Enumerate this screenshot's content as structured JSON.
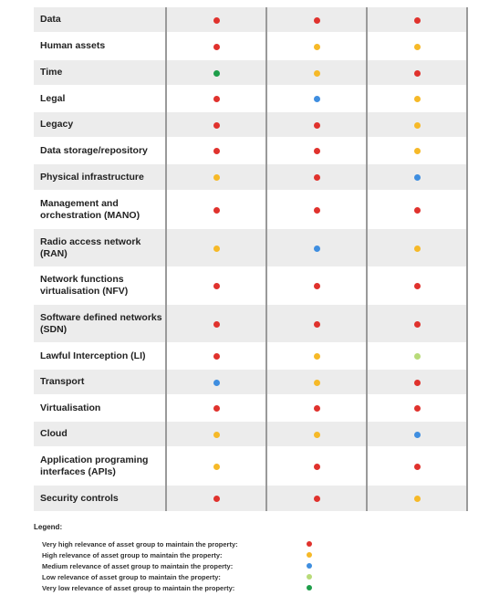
{
  "colors": {
    "very_high": "#e0322d",
    "high": "#f6b928",
    "medium": "#3f8ee0",
    "low": "#b8db79",
    "very_low": "#1e9e4a"
  },
  "rows": [
    {
      "label": "Data",
      "levels": [
        "very_high",
        "very_high",
        "very_high"
      ]
    },
    {
      "label": "Human assets",
      "levels": [
        "very_high",
        "high",
        "high"
      ]
    },
    {
      "label": "Time",
      "levels": [
        "very_low",
        "high",
        "very_high"
      ]
    },
    {
      "label": "Legal",
      "levels": [
        "very_high",
        "medium",
        "high"
      ]
    },
    {
      "label": "Legacy",
      "levels": [
        "very_high",
        "very_high",
        "high"
      ]
    },
    {
      "label": "Data storage/repository",
      "levels": [
        "very_high",
        "very_high",
        "high"
      ]
    },
    {
      "label": "Physical infrastructure",
      "levels": [
        "high",
        "very_high",
        "medium"
      ]
    },
    {
      "label": "Management and orchestration (MANO)",
      "levels": [
        "very_high",
        "very_high",
        "very_high"
      ]
    },
    {
      "label": "Radio access network (RAN)",
      "levels": [
        "high",
        "medium",
        "high"
      ]
    },
    {
      "label": "Network functions virtualisation (NFV)",
      "levels": [
        "very_high",
        "very_high",
        "very_high"
      ]
    },
    {
      "label": "Software defined networks (SDN)",
      "levels": [
        "very_high",
        "very_high",
        "very_high"
      ]
    },
    {
      "label": "Lawful Interception (LI)",
      "levels": [
        "very_high",
        "high",
        "low"
      ]
    },
    {
      "label": "Transport",
      "levels": [
        "medium",
        "high",
        "very_high"
      ]
    },
    {
      "label": "Virtualisation",
      "levels": [
        "very_high",
        "very_high",
        "very_high"
      ]
    },
    {
      "label": "Cloud",
      "levels": [
        "high",
        "high",
        "medium"
      ]
    },
    {
      "label": "Application programing interfaces (APIs)",
      "levels": [
        "high",
        "very_high",
        "very_high"
      ]
    },
    {
      "label": "Security controls",
      "levels": [
        "very_high",
        "very_high",
        "high"
      ]
    }
  ],
  "legend": {
    "title": "Legend:",
    "items": [
      {
        "level": "very_high",
        "text": "Very high relevance of asset group to maintain the property:"
      },
      {
        "level": "high",
        "text": "High relevance of asset group to maintain the property:"
      },
      {
        "level": "medium",
        "text": "Medium relevance of asset group to maintain the property:"
      },
      {
        "level": "low",
        "text": "Low relevance of asset group to maintain the property:"
      },
      {
        "level": "very_low",
        "text": "Very low relevance of asset group to maintain the property:"
      }
    ]
  }
}
